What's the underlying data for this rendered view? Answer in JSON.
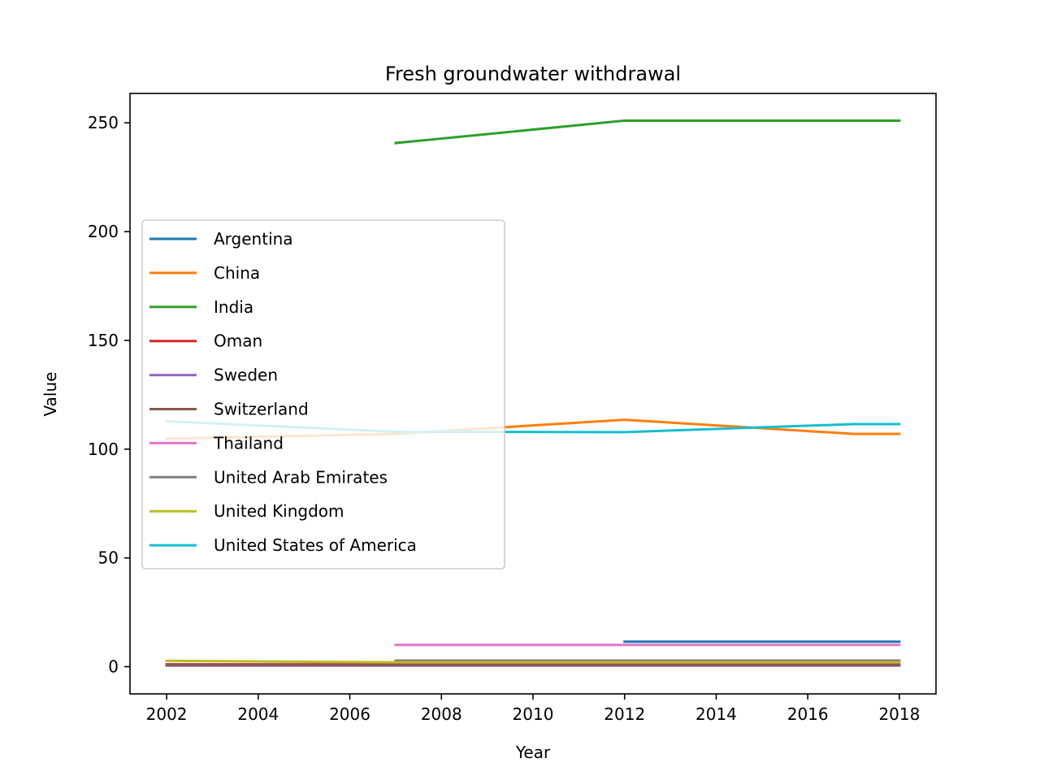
{
  "chart_data": {
    "type": "line",
    "title": "Fresh groundwater withdrawal",
    "xlabel": "Year",
    "ylabel": "Value",
    "xlim": [
      2001.2,
      2018.8
    ],
    "ylim": [
      -12.5,
      263.5
    ],
    "xticks": [
      2002,
      2004,
      2006,
      2008,
      2010,
      2012,
      2014,
      2016,
      2018
    ],
    "yticks": [
      0,
      50,
      100,
      150,
      200,
      250
    ],
    "grid": false,
    "legend_position": "center-left",
    "series": [
      {
        "name": "Argentina",
        "color": "#1f77b4",
        "x": [
          2012,
          2017,
          2018
        ],
        "y": [
          11.5,
          11.5,
          11.5
        ]
      },
      {
        "name": "China",
        "color": "#ff7f0e",
        "x": [
          2002,
          2007,
          2012,
          2017,
          2018
        ],
        "y": [
          104.8,
          107.0,
          113.5,
          107.0,
          107.0
        ]
      },
      {
        "name": "India",
        "color": "#2ca02c",
        "x": [
          2007,
          2012,
          2017,
          2018
        ],
        "y": [
          240.7,
          251.0,
          251.0,
          251.0
        ]
      },
      {
        "name": "Oman",
        "color": "#d62728",
        "x": [
          2002,
          2007,
          2012,
          2017,
          2018
        ],
        "y": [
          1.1,
          1.1,
          1.1,
          1.1,
          1.1
        ]
      },
      {
        "name": "Sweden",
        "color": "#9467bd",
        "x": [
          2002,
          2007,
          2012,
          2017,
          2018
        ],
        "y": [
          0.5,
          0.5,
          0.5,
          0.5,
          0.5
        ]
      },
      {
        "name": "Switzerland",
        "color": "#8c564b",
        "x": [
          2002,
          2007,
          2012,
          2017,
          2018
        ],
        "y": [
          0.9,
          0.9,
          0.9,
          0.9,
          0.9
        ]
      },
      {
        "name": "Thailand",
        "color": "#e377c2",
        "x": [
          2007,
          2012,
          2017,
          2018
        ],
        "y": [
          10.0,
          10.0,
          10.0,
          10.0
        ]
      },
      {
        "name": "United Arab Emirates",
        "color": "#7f7f7f",
        "x": [
          2007,
          2012,
          2017,
          2018
        ],
        "y": [
          2.8,
          2.8,
          2.8,
          2.8
        ]
      },
      {
        "name": "United Kingdom",
        "color": "#bcbd22",
        "x": [
          2002,
          2007,
          2012,
          2017,
          2018
        ],
        "y": [
          2.7,
          2.0,
          2.0,
          2.0,
          2.0
        ]
      },
      {
        "name": "United States of America",
        "color": "#17becf",
        "x": [
          2002,
          2007,
          2012,
          2017,
          2018
        ],
        "y": [
          112.8,
          108.0,
          107.8,
          111.5,
          111.5
        ]
      }
    ]
  }
}
